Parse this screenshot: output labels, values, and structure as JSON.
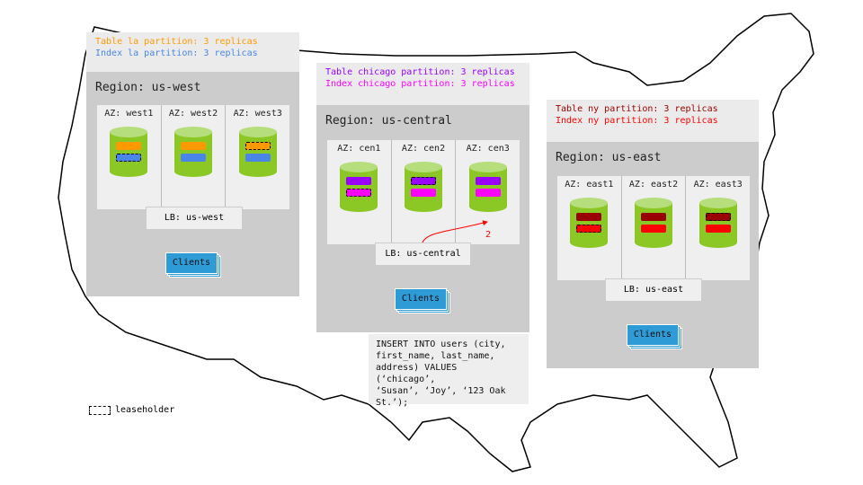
{
  "colors": {
    "cylinder": "#8cc825",
    "cylinder_top": "#b6de7c",
    "clients": "#2e9ad6",
    "arrow": "#ff0000"
  },
  "regions": [
    {
      "id": "us-west",
      "title": "Region: us-west",
      "partitions": [
        {
          "label": "Table la partition: 3 replicas",
          "color": "#ff9900"
        },
        {
          "label": "Index la partition: 3 replicas",
          "color": "#4a86e8"
        }
      ],
      "azs": [
        {
          "label": "AZ: west1",
          "leaseholder": 1
        },
        {
          "label": "AZ: west2",
          "leaseholder": -1
        },
        {
          "label": "AZ: west3",
          "leaseholder": 0
        }
      ],
      "lb": "LB: us-west",
      "clients": "Clients"
    },
    {
      "id": "us-central",
      "title": "Region: us-central",
      "partitions": [
        {
          "label": "Table chicago partition: 3 replicas",
          "color": "#9900ff"
        },
        {
          "label": "Index chicago partition: 3 replicas",
          "color": "#ff00ff"
        }
      ],
      "azs": [
        {
          "label": "AZ: cen1",
          "leaseholder": 1
        },
        {
          "label": "AZ: cen2",
          "leaseholder": 0
        },
        {
          "label": "AZ: cen3",
          "leaseholder": -1
        }
      ],
      "lb": "LB: us-central",
      "clients": "Clients"
    },
    {
      "id": "us-east",
      "title": "Region: us-east",
      "partitions": [
        {
          "label": "Table ny partition: 3 replicas",
          "color": "#990000"
        },
        {
          "label": "Index ny partition: 3 replicas",
          "color": "#ff0000"
        }
      ],
      "azs": [
        {
          "label": "AZ: east1",
          "leaseholder": 1
        },
        {
          "label": "AZ: east2",
          "leaseholder": -1
        },
        {
          "label": "AZ: east3",
          "leaseholder": 0
        }
      ],
      "lb": "LB: us-east",
      "clients": "Clients"
    }
  ],
  "arrow_label": "2",
  "sql": "INSERT INTO users (city,\nfirst_name, last_name,\naddress) VALUES (‘chicago’,\n‘Susan’, ‘Joy’, ‘123 Oak\nSt.’);",
  "legend": {
    "label": "leaseholder"
  }
}
